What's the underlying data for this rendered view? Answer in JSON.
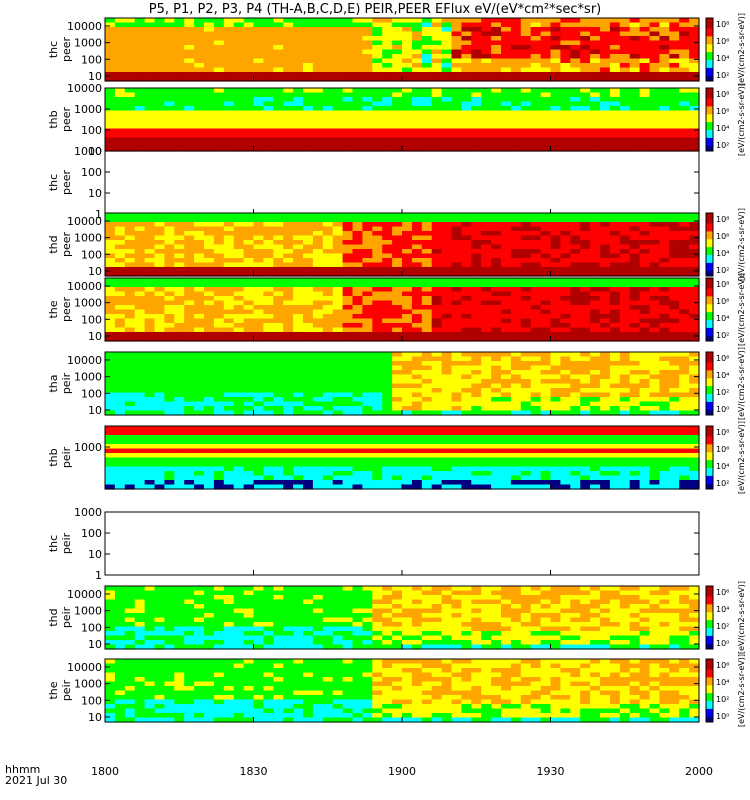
{
  "title": "P5, P1, P2, P3, P4 (TH-A,B,C,D,E) PEIR,PEER EFlux eV/(eV*cm²*sec*sr)",
  "footer": {
    "time_label": "hhmm",
    "date_label": "2021 Jul 30"
  },
  "chart_data": {
    "type": "heatmap",
    "x_ticks": [
      "1800",
      "1830",
      "1900",
      "1930",
      "2000"
    ],
    "x_range_hhmm": [
      "1800",
      "2000"
    ],
    "colorbar_label": "[eV/(cm2-s-sr-eV)]",
    "colorscale": [
      "#000080",
      "#0000ff",
      "#00ffff",
      "#00ff00",
      "#ffff00",
      "#ffa500",
      "#ff0000",
      "#b00000"
    ],
    "panels": [
      {
        "name": "thc peer",
        "probe": "thc",
        "species": "peer",
        "y_ticks": [
          "10",
          "100",
          "1000",
          "10000"
        ],
        "ylim": [
          5,
          30000
        ],
        "cbar_ticks": [
          "10²",
          "10⁴",
          "10⁶",
          "10⁸"
        ],
        "profile": "ee-a"
      },
      {
        "name": "thb peer",
        "probe": "thb",
        "species": "peer",
        "y_ticks": [
          "10",
          "100",
          "1000",
          "10000"
        ],
        "ylim": [
          10,
          10000
        ],
        "cbar_ticks": [
          "10²",
          "10⁴",
          "10⁶",
          "10⁸"
        ],
        "profile": "band-e"
      },
      {
        "name": "thc peer",
        "probe": "thc",
        "species": "peer",
        "y_ticks": [
          "1",
          "10",
          "100",
          "1000"
        ],
        "ylim": [
          1,
          1000
        ],
        "cbar_ticks": [],
        "profile": "empty"
      },
      {
        "name": "thd peer",
        "probe": "thd",
        "species": "peer",
        "y_ticks": [
          "10",
          "100",
          "1000",
          "10000"
        ],
        "ylim": [
          5,
          30000
        ],
        "cbar_ticks": [
          "10²",
          "10⁴",
          "10⁶",
          "10⁸"
        ],
        "profile": "ee-d"
      },
      {
        "name": "the peer",
        "probe": "the",
        "species": "peer",
        "y_ticks": [
          "10",
          "100",
          "1000",
          "10000"
        ],
        "ylim": [
          5,
          30000
        ],
        "cbar_ticks": [
          "10²",
          "10⁴",
          "10⁶",
          "10⁸"
        ],
        "profile": "ee-d"
      },
      {
        "name": "tha peir",
        "probe": "tha",
        "species": "peir",
        "y_ticks": [
          "10",
          "100",
          "1000",
          "10000"
        ],
        "ylim": [
          5,
          30000
        ],
        "cbar_ticks": [
          "10⁰",
          "10²",
          "10⁴",
          "10⁶"
        ],
        "profile": "ion-a"
      },
      {
        "name": "thb peir",
        "probe": "thb",
        "species": "peir",
        "y_ticks": [
          "1000"
        ],
        "ylim": [
          10,
          10000
        ],
        "cbar_ticks": [
          "10²",
          "10⁴",
          "10⁶",
          "10⁸"
        ],
        "profile": "band-i"
      },
      {
        "name": "thc peir",
        "probe": "thc",
        "species": "peir",
        "y_ticks": [
          "1",
          "10",
          "100",
          "1000"
        ],
        "ylim": [
          1,
          1000
        ],
        "cbar_ticks": [],
        "profile": "empty"
      },
      {
        "name": "thd peir",
        "probe": "thd",
        "species": "peir",
        "y_ticks": [
          "10",
          "100",
          "1000",
          "10000"
        ],
        "ylim": [
          5,
          30000
        ],
        "cbar_ticks": [
          "10⁰",
          "10²",
          "10⁴",
          "10⁶"
        ],
        "profile": "ion-d"
      },
      {
        "name": "the peir",
        "probe": "the",
        "species": "peir",
        "y_ticks": [
          "10",
          "100",
          "1000",
          "10000"
        ],
        "ylim": [
          5,
          30000
        ],
        "cbar_ticks": [
          "10⁰",
          "10²",
          "10⁴",
          "10⁶"
        ],
        "profile": "ion-d"
      }
    ]
  }
}
